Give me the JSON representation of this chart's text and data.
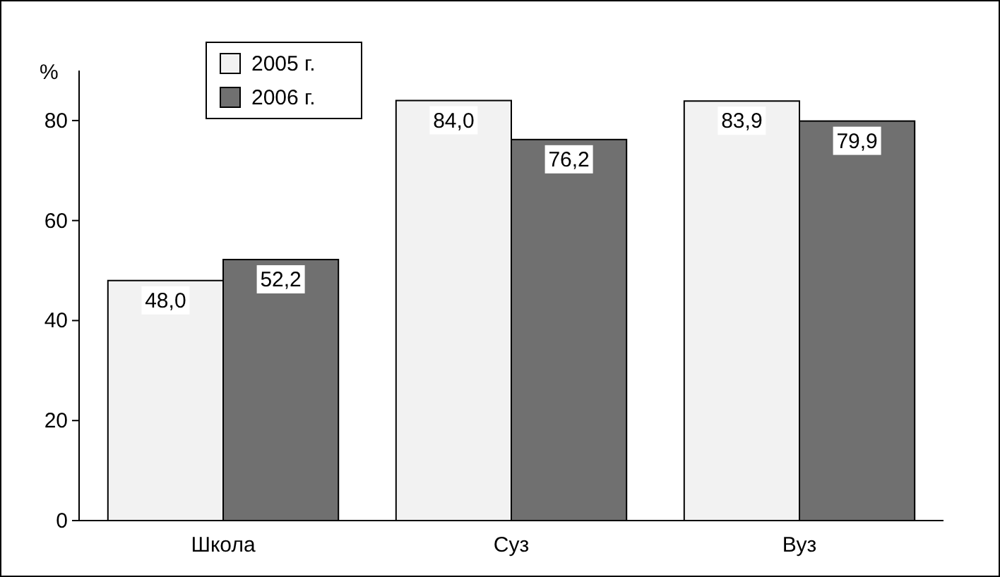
{
  "chart_data": {
    "type": "bar",
    "categories": [
      "Школа",
      "Суз",
      "Вуз"
    ],
    "series": [
      {
        "name": "2005 г.",
        "color": "#f2f2f2",
        "values": [
          48.0,
          84.0,
          83.9
        ],
        "value_labels": [
          "48,0",
          "84,0",
          "83,9"
        ]
      },
      {
        "name": "2006 г.",
        "color": "#707070",
        "values": [
          52.2,
          76.2,
          79.9
        ],
        "value_labels": [
          "52,2",
          "76,2",
          "79,9"
        ]
      }
    ],
    "ylabel": "%",
    "ylim": [
      0,
      90
    ],
    "yticks": [
      0,
      20,
      40,
      60,
      80
    ],
    "legend": "top left",
    "grid": false
  }
}
